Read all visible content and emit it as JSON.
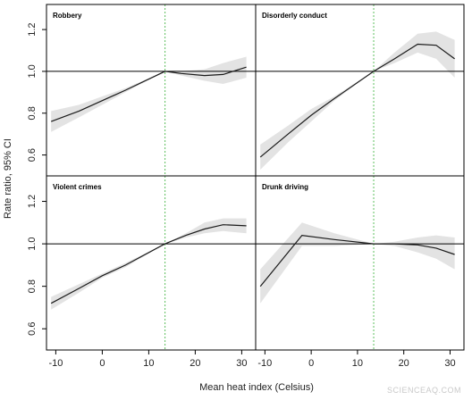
{
  "figure": {
    "xlabel": "Mean heat index (Celsius)",
    "ylabel": "Rate ratio, 95% CI",
    "watermark": "SCIENCEAQ.COM",
    "colors": {
      "line": "#1a1a1a",
      "band": "#e3e3e3",
      "reference": "#5cbf5c",
      "axis": "#000000"
    }
  },
  "chart_data": [
    {
      "type": "line",
      "title": "Robbery",
      "x": [
        -11,
        -5,
        0,
        5,
        13.5,
        17,
        22,
        26,
        31
      ],
      "series": [
        {
          "values": [
            0.76,
            0.81,
            0.86,
            0.91,
            1.0,
            0.99,
            0.98,
            0.985,
            1.02
          ],
          "lower": [
            0.71,
            0.78,
            0.84,
            0.9,
            1.0,
            0.98,
            0.955,
            0.94,
            0.97
          ],
          "upper": [
            0.81,
            0.84,
            0.88,
            0.92,
            1.0,
            1.0,
            1.01,
            1.04,
            1.07
          ]
        }
      ],
      "reference_x": 13.5,
      "reference_y": 1.0,
      "xlim": [
        -12,
        33
      ],
      "ylim": [
        0.5,
        1.32
      ],
      "xticks": [
        -10,
        0,
        10,
        20,
        30
      ],
      "yticks": [
        0.6,
        0.8,
        1.0,
        1.2
      ]
    },
    {
      "type": "line",
      "title": "Disorderly conduct",
      "x": [
        -11,
        -5,
        0,
        5,
        13.5,
        18,
        23,
        27,
        31
      ],
      "series": [
        {
          "values": [
            0.59,
            0.7,
            0.79,
            0.87,
            1.0,
            1.06,
            1.13,
            1.125,
            1.06
          ],
          "lower": [
            0.53,
            0.66,
            0.76,
            0.86,
            1.0,
            1.04,
            1.09,
            1.06,
            0.97
          ],
          "upper": [
            0.65,
            0.74,
            0.82,
            0.88,
            1.0,
            1.09,
            1.18,
            1.19,
            1.15
          ]
        }
      ],
      "reference_x": 13.5,
      "reference_y": 1.0,
      "xlim": [
        -12,
        33
      ],
      "ylim": [
        0.5,
        1.32
      ],
      "xticks": [
        -10,
        0,
        10,
        20,
        30
      ],
      "yticks": [
        0.6,
        0.8,
        1.0,
        1.2
      ]
    },
    {
      "type": "line",
      "title": "Violent crimes",
      "x": [
        -11,
        -5,
        0,
        5,
        13.5,
        18,
        22,
        26,
        31
      ],
      "series": [
        {
          "values": [
            0.72,
            0.79,
            0.85,
            0.9,
            1.0,
            1.04,
            1.07,
            1.09,
            1.085
          ],
          "lower": [
            0.69,
            0.77,
            0.84,
            0.89,
            1.0,
            1.03,
            1.05,
            1.06,
            1.05
          ],
          "upper": [
            0.75,
            0.81,
            0.86,
            0.91,
            1.0,
            1.05,
            1.1,
            1.12,
            1.12
          ]
        }
      ],
      "reference_x": 13.5,
      "reference_y": 1.0,
      "xlim": [
        -12,
        33
      ],
      "ylim": [
        0.5,
        1.32
      ],
      "xticks": [
        -10,
        0,
        10,
        20,
        30
      ],
      "yticks": [
        0.6,
        0.8,
        1.0,
        1.2
      ]
    },
    {
      "type": "line",
      "title": "Drunk driving",
      "x": [
        -11,
        -2,
        5,
        13.5,
        18,
        23,
        27,
        31
      ],
      "series": [
        {
          "values": [
            0.8,
            1.04,
            1.02,
            1.0,
            1.0,
            0.995,
            0.98,
            0.95
          ],
          "lower": [
            0.72,
            0.99,
            0.99,
            1.0,
            0.99,
            0.96,
            0.93,
            0.88
          ],
          "upper": [
            0.88,
            1.1,
            1.05,
            1.0,
            1.01,
            1.03,
            1.04,
            1.03
          ]
        }
      ],
      "reference_x": 13.5,
      "reference_y": 1.0,
      "xlim": [
        -12,
        33
      ],
      "ylim": [
        0.5,
        1.32
      ],
      "xticks": [
        -10,
        0,
        10,
        20,
        30
      ],
      "yticks": [
        0.6,
        0.8,
        1.0,
        1.2
      ]
    }
  ]
}
